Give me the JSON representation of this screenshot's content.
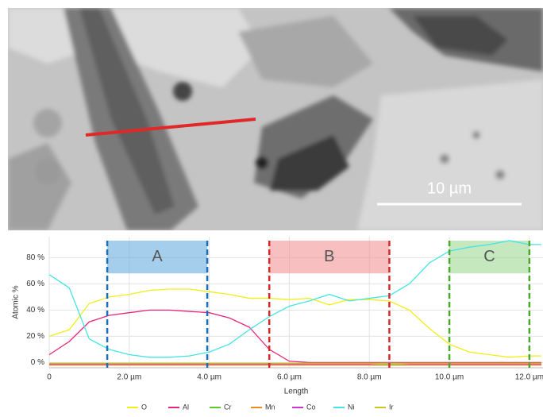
{
  "image": {
    "scale_label": "10 µm"
  },
  "chart_data": {
    "type": "line",
    "x_label": "Length",
    "y_label": "Atomic %",
    "x": [
      0,
      0.5,
      1.0,
      1.5,
      2.0,
      2.5,
      3.0,
      3.5,
      4.0,
      4.5,
      5.0,
      5.5,
      6.0,
      6.5,
      7.0,
      7.5,
      8.0,
      8.5,
      9.0,
      9.5,
      10.0,
      10.5,
      11.0,
      11.5,
      12.0,
      12.3
    ],
    "series": [
      {
        "name": "O",
        "color": "#f2ee16",
        "values": [
          20,
          25,
          45,
          50,
          52,
          55,
          56,
          56,
          54,
          52,
          49,
          49,
          48,
          49,
          44,
          48,
          48,
          47,
          40,
          26,
          14,
          8,
          6,
          4,
          5,
          5
        ]
      },
      {
        "name": "Al",
        "color": "#e8247c",
        "values": [
          6,
          16,
          31,
          36,
          38,
          40,
          40,
          39,
          38,
          34,
          27,
          10,
          1,
          0,
          0,
          0,
          0,
          0,
          0,
          0,
          0,
          0,
          0,
          0,
          0,
          0
        ]
      },
      {
        "name": "Cr",
        "color": "#5ccc2c",
        "values": [
          -1,
          -1,
          -1,
          -1,
          -1,
          -1,
          -1,
          -1,
          -1,
          -1,
          -1,
          -1,
          -1,
          -1,
          -1,
          -1,
          -1,
          -1,
          -1,
          -1,
          -1,
          -1,
          -1,
          -1,
          -1,
          -1
        ]
      },
      {
        "name": "Mn",
        "color": "#f08c1c",
        "values": [
          -2,
          -2,
          -2,
          -2,
          -2,
          -2,
          -2,
          -2,
          -2,
          -2,
          -2,
          -2,
          -2,
          -2,
          -2,
          -2,
          -2,
          -2,
          -2,
          -2,
          -2,
          -2,
          -2,
          -2,
          -2,
          -2
        ]
      },
      {
        "name": "Co",
        "color": "#d030d0",
        "values": [
          -1,
          -1,
          -1,
          -1,
          -1,
          -1,
          -1,
          -1,
          -1,
          -1,
          -1,
          -1,
          -1,
          -1,
          -1,
          -1,
          -1,
          0,
          -1,
          -1,
          -1,
          -1,
          -1,
          -1,
          -1,
          -1
        ]
      },
      {
        "name": "Ni",
        "color": "#44e4e4",
        "values": [
          67,
          57,
          18,
          10,
          6,
          4,
          4,
          5,
          8,
          14,
          25,
          35,
          43,
          47,
          52,
          47,
          49,
          51,
          60,
          76,
          85,
          88,
          90,
          93,
          90,
          90
        ]
      },
      {
        "name": "Ir",
        "color": "#c8c822",
        "values": [
          -0.5,
          -0.5,
          -0.5,
          -0.5,
          -0.5,
          -0.5,
          -0.5,
          -0.5,
          -0.5,
          -0.5,
          -0.5,
          -0.5,
          -0.5,
          -0.5,
          -0.5,
          -0.5,
          -0.5,
          -0.5,
          -0.5,
          -0.5,
          -0.5,
          -0.5,
          -0.5,
          -0.5,
          -0.5,
          -0.5
        ]
      }
    ],
    "regions": [
      {
        "label": "A",
        "x": [
          1.45,
          3.95
        ],
        "y": [
          68,
          93
        ],
        "color": "#5aa5dc",
        "line_color": "#1a6fb8"
      },
      {
        "label": "B",
        "x": [
          5.5,
          8.5
        ],
        "y": [
          68,
          93
        ],
        "color": "#f08a8a",
        "line_color": "#d42a2a"
      },
      {
        "label": "C",
        "x": [
          10.0,
          12.0
        ],
        "y": [
          68,
          93
        ],
        "color": "#96d68a",
        "line_color": "#4aa82a"
      }
    ],
    "xlim": [
      0,
      12.34
    ],
    "ylim": [
      -4,
      96
    ],
    "xticks": [
      0,
      {
        "value": 2,
        "label": "2.0 µm"
      },
      {
        "value": 4,
        "label": "4.0 µm"
      },
      {
        "value": 6,
        "label": "6.0 µm"
      },
      {
        "value": 8,
        "label": "8.0 µm"
      },
      {
        "value": 10,
        "label": "10.0 µm"
      },
      {
        "value": 12,
        "label": "12.0 µm"
      }
    ],
    "yticks": [
      {
        "value": 0,
        "label": "0 %"
      },
      {
        "value": 20,
        "label": "20 %"
      },
      {
        "value": 40,
        "label": "40 %"
      },
      {
        "value": 60,
        "label": "60 %"
      },
      {
        "value": 80,
        "label": "80 %"
      }
    ],
    "grid": true,
    "legend": "bottom"
  }
}
